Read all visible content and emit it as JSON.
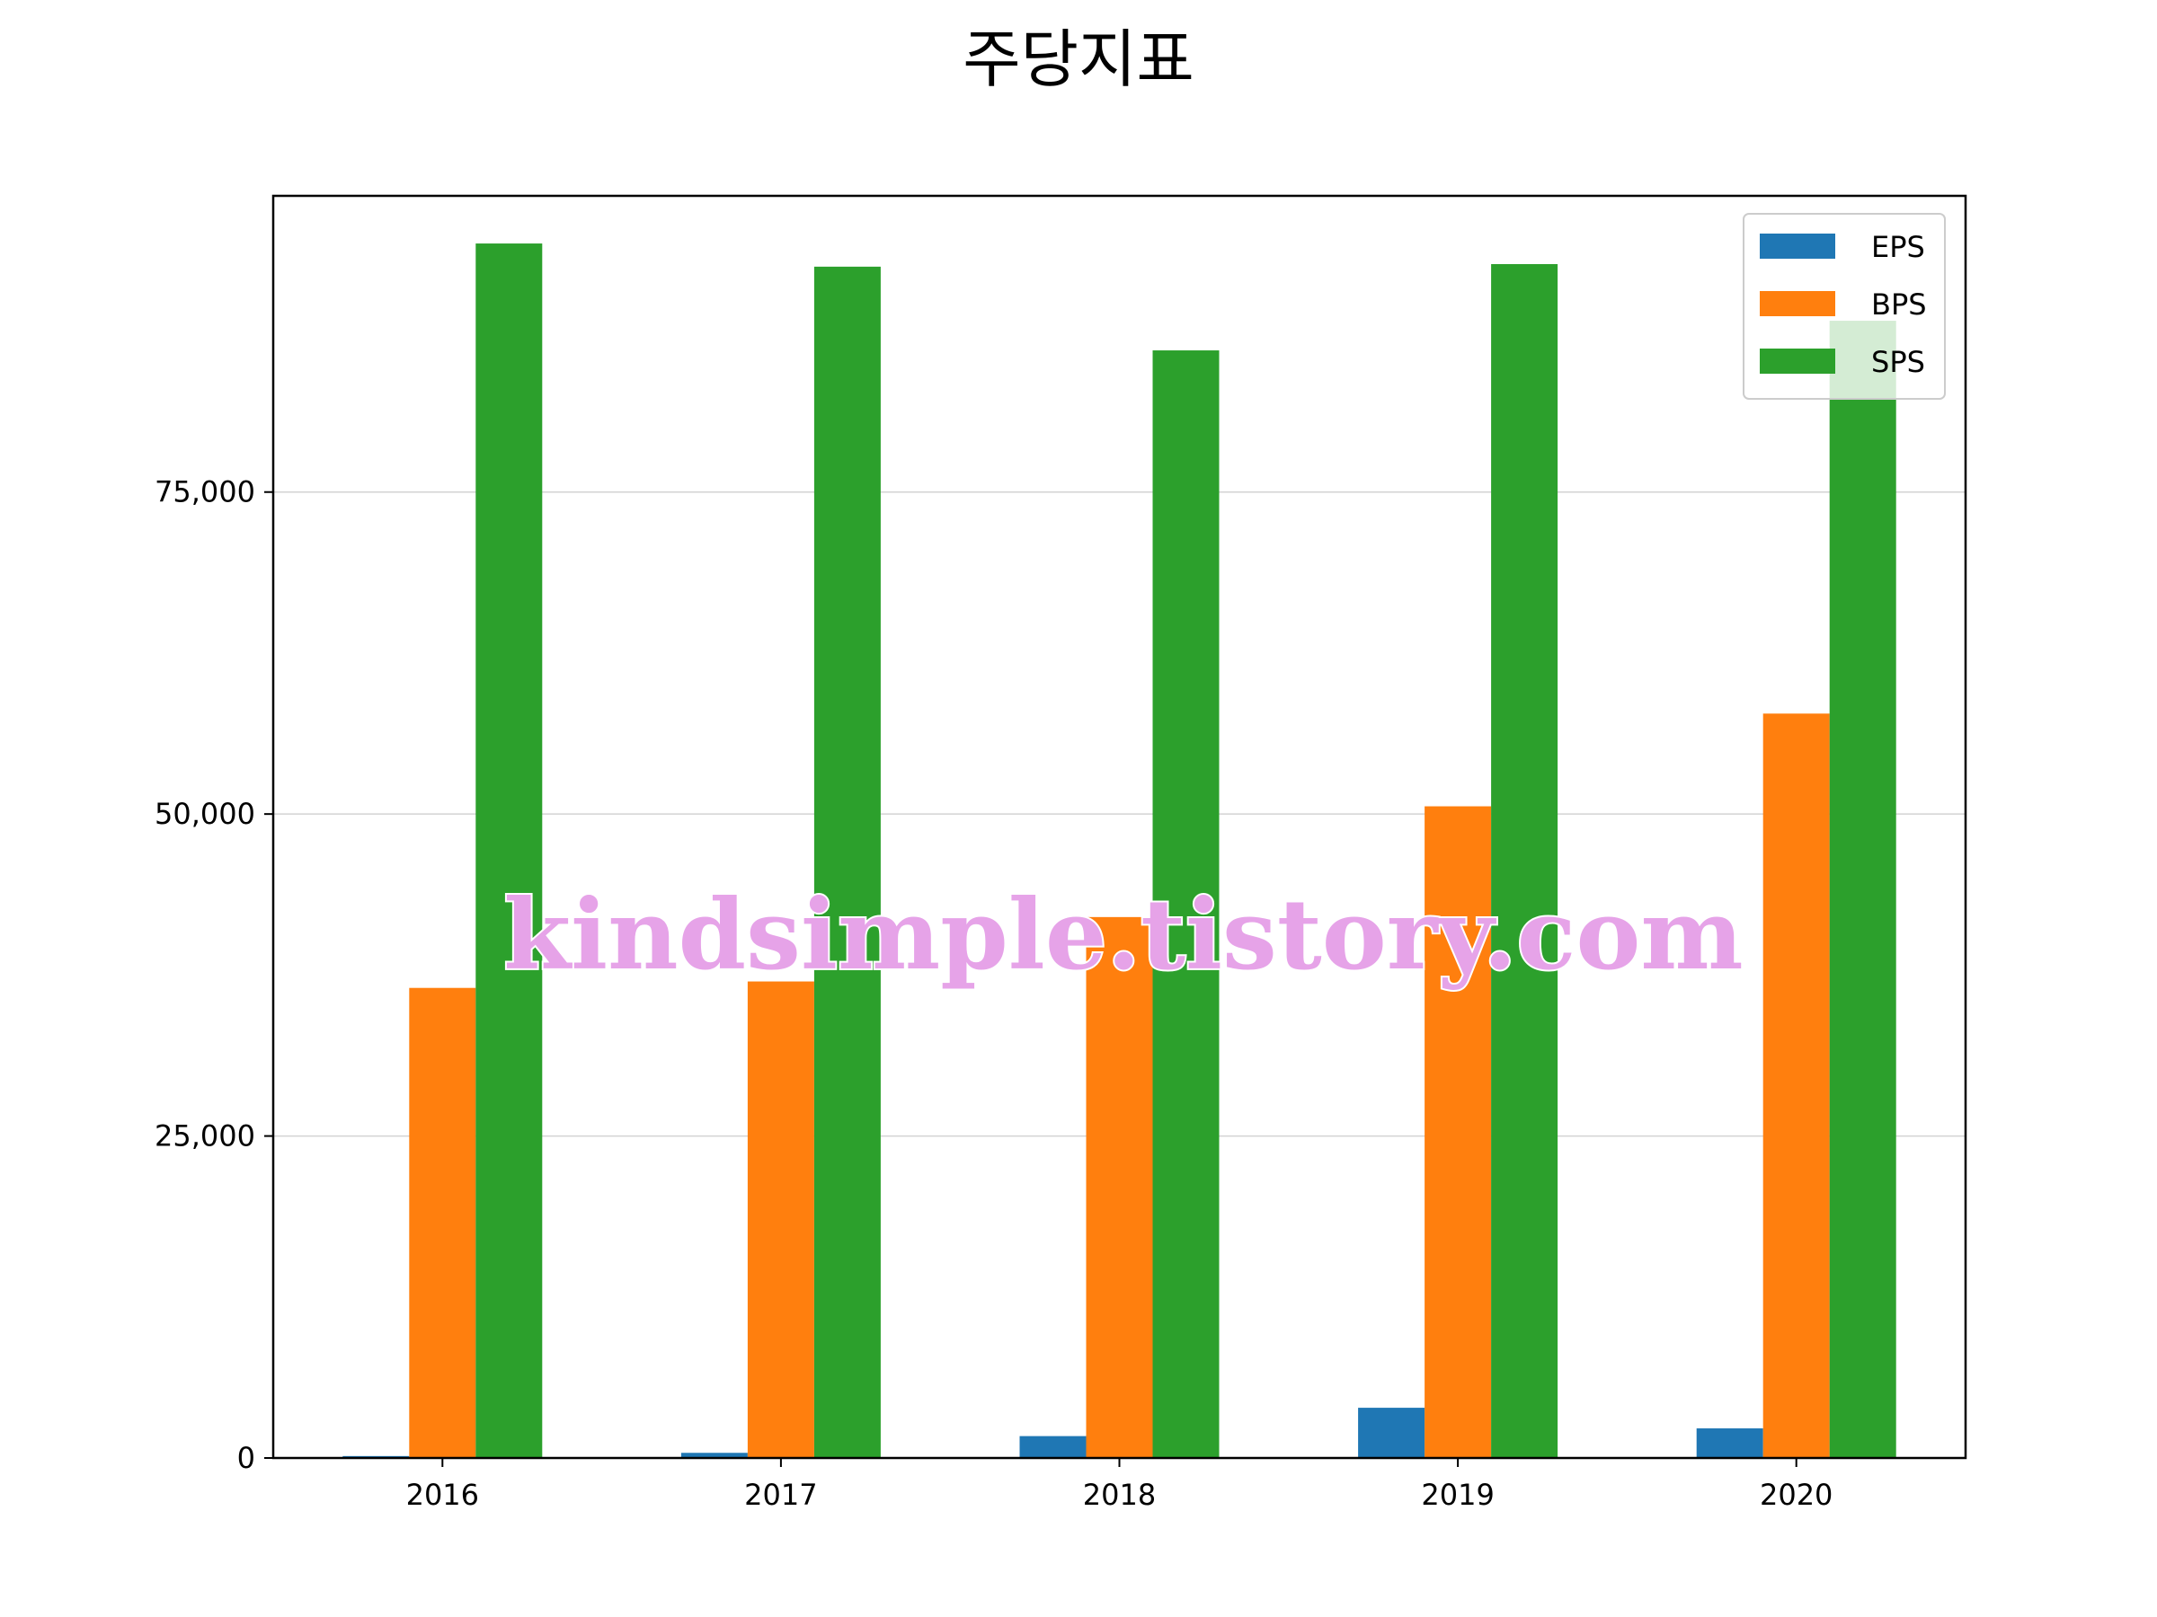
{
  "chart_data": {
    "type": "bar",
    "title": "주당지표",
    "categories": [
      "2016",
      "2017",
      "2018",
      "2019",
      "2020"
    ],
    "series": [
      {
        "name": "EPS",
        "color": "#1f77b4",
        "values": [
          150,
          400,
          1700,
          3900,
          2300
        ]
      },
      {
        "name": "BPS",
        "color": "#ff7f0e",
        "values": [
          36500,
          37000,
          42000,
          50600,
          57800
        ]
      },
      {
        "name": "SPS",
        "color": "#2ca02c",
        "values": [
          94300,
          92500,
          86000,
          92700,
          88300
        ]
      }
    ],
    "ylim": [
      0,
      98000
    ],
    "yticks": [
      0,
      25000,
      50000,
      75000
    ],
    "ytick_labels": [
      "0",
      "25,000",
      "50,000",
      "75,000"
    ],
    "grid": "y",
    "legend_position": "top-right",
    "xlabel": "",
    "ylabel": ""
  },
  "watermark": "kindsimple.tistory.com"
}
